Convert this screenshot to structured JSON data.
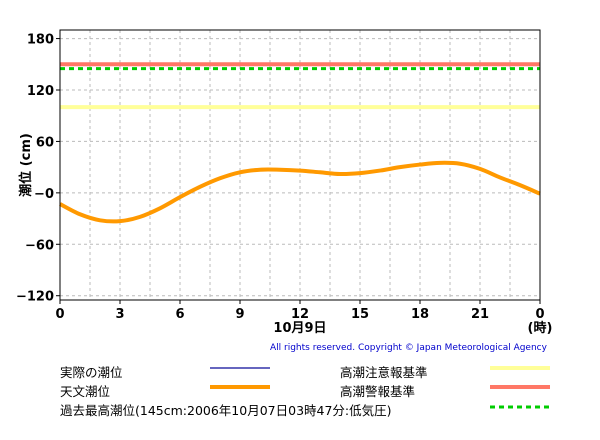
{
  "chart_data": {
    "type": "line",
    "ylabel": "潮位 (cm)",
    "date_label": "10月9日",
    "x_unit_label": "(時)",
    "x_ticks": [
      "0",
      "3",
      "6",
      "9",
      "12",
      "15",
      "18",
      "21",
      "0"
    ],
    "xlim": [
      0,
      24
    ],
    "y_ticks": [
      "180",
      "120",
      "60",
      "−0",
      "−60",
      "−120"
    ],
    "ylim": [
      -125,
      190
    ],
    "grid": true,
    "series": [
      {
        "name": "天文潮位",
        "color": "#ff9900",
        "x": [
          0,
          1,
          2,
          3,
          4,
          5,
          6,
          7,
          8,
          9,
          10,
          11,
          12,
          13,
          14,
          15,
          16,
          17,
          18,
          19,
          20,
          21,
          22,
          23,
          24
        ],
        "values": [
          -13,
          -25,
          -32,
          -33,
          -28,
          -18,
          -5,
          7,
          17,
          24,
          27,
          27,
          26,
          24,
          22,
          23,
          26,
          30,
          33,
          35,
          34,
          28,
          18,
          9,
          -1
        ]
      },
      {
        "name": "実際の潮位",
        "color": "#3333aa",
        "x": [],
        "values": []
      }
    ],
    "reference_lines": [
      {
        "name": "高潮注意報基準",
        "value": 100,
        "color": "#ffff99",
        "dash": false
      },
      {
        "name": "高潮警報基準",
        "value": 150,
        "color": "#ff7766",
        "dash": false
      },
      {
        "name": "過去最高潮位(145cm:2006年10月07日03時47分:低気圧)",
        "value": 145,
        "color": "#00cc00",
        "dash": true
      }
    ]
  },
  "copyright": "All rights reserved. Copyright © Japan Meteorological Agency",
  "legend": {
    "actual": "実際の潮位",
    "astronomical": "天文潮位",
    "caution": "高潮注意報基準",
    "warning": "高潮警報基準",
    "record": "過去最高潮位(145cm:2006年10月07日03時47分:低気圧)"
  },
  "colors": {
    "actual": "#3333aa",
    "astronomical": "#ff9900",
    "caution": "#ffff99",
    "warning": "#ff7766",
    "record": "#00cc00"
  }
}
